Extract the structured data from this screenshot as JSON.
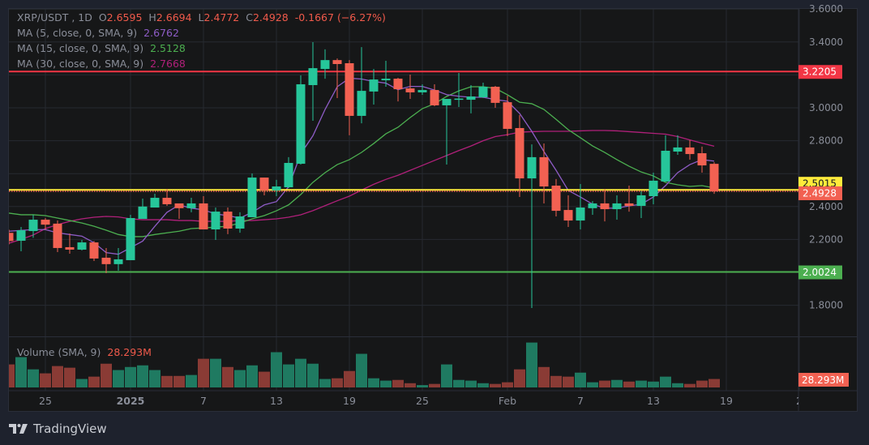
{
  "header": {
    "symbol": "XRP/USDT , 1D",
    "open_label": "O",
    "open": "2.6595",
    "high_label": "H",
    "high": "2.6694",
    "low_label": "L",
    "low": "2.4772",
    "close_label": "C",
    "close": "2.4928",
    "change": "-0.1667 (−6.27%)"
  },
  "indicators": [
    {
      "label": "MA (5, close, 0, SMA, 9)",
      "value": "2.6762",
      "color": "#8e5cc6"
    },
    {
      "label": "MA (15, close, 0, SMA, 9)",
      "value": "2.5128",
      "color": "#4caf50"
    },
    {
      "label": "MA (30, close, 0, SMA, 9)",
      "value": "2.7668",
      "color": "#b0207a"
    }
  ],
  "volume_legend": {
    "label": "Volume (SMA, 9)",
    "value": "28.293M"
  },
  "footer": {
    "brand": "TradingView"
  },
  "colors": {
    "up": "#26c69a",
    "down": "#f26152",
    "vol_up": "#1f7a61",
    "vol_down": "#8a3b35"
  },
  "chart_data": {
    "type": "candlestick",
    "title": "XRP/USDT , 1D",
    "price_range": [
      1.75,
      3.62
    ],
    "price_ticks": [
      "3.6000",
      "3.4000",
      "3.0000",
      "2.8000",
      "2.4000",
      "2.2000",
      "1.8000"
    ],
    "grid_values": [
      1.8,
      2.0,
      2.2,
      2.4,
      2.6,
      2.8,
      3.0,
      3.2,
      3.4,
      3.6
    ],
    "time_labels": [
      {
        "text": "25",
        "index": 3,
        "bold": false
      },
      {
        "text": "2025",
        "index": 10,
        "bold": true
      },
      {
        "text": "7",
        "index": 16,
        "bold": false
      },
      {
        "text": "13",
        "index": 22,
        "bold": false
      },
      {
        "text": "19",
        "index": 28,
        "bold": false
      },
      {
        "text": "25",
        "index": 34,
        "bold": false
      },
      {
        "text": "Feb",
        "index": 41,
        "bold": false
      },
      {
        "text": "7",
        "index": 47,
        "bold": false
      },
      {
        "text": "13",
        "index": 53,
        "bold": false
      },
      {
        "text": "19",
        "index": 59,
        "bold": false
      },
      {
        "text": "2",
        "index": 65,
        "bold": false
      }
    ],
    "ohlc": [
      [
        2.24,
        2.26,
        2.17,
        2.19
      ],
      [
        2.192,
        2.276,
        2.128,
        2.256
      ],
      [
        2.251,
        2.35,
        2.21,
        2.32
      ],
      [
        2.32,
        2.33,
        2.26,
        2.29
      ],
      [
        2.296,
        2.315,
        2.123,
        2.148
      ],
      [
        2.153,
        2.236,
        2.113,
        2.138
      ],
      [
        2.138,
        2.197,
        2.133,
        2.182
      ],
      [
        2.182,
        2.19,
        2.069,
        2.084
      ],
      [
        2.089,
        2.148,
        1.995,
        2.05
      ],
      [
        2.05,
        2.148,
        2.01,
        2.079
      ],
      [
        2.074,
        2.35,
        2.074,
        2.33
      ],
      [
        2.325,
        2.448,
        2.325,
        2.4
      ],
      [
        2.394,
        2.478,
        2.394,
        2.453
      ],
      [
        2.453,
        2.507,
        2.404,
        2.414
      ],
      [
        2.419,
        2.419,
        2.325,
        2.39
      ],
      [
        2.39,
        2.453,
        2.365,
        2.419
      ],
      [
        2.419,
        2.463,
        2.261,
        2.261
      ],
      [
        2.261,
        2.394,
        2.197,
        2.369
      ],
      [
        2.369,
        2.394,
        2.232,
        2.266
      ],
      [
        2.266,
        2.365,
        2.241,
        2.34
      ],
      [
        2.335,
        2.601,
        2.335,
        2.576
      ],
      [
        2.576,
        2.576,
        2.468,
        2.498
      ],
      [
        2.498,
        2.562,
        2.463,
        2.522
      ],
      [
        2.517,
        2.7,
        2.512,
        2.665
      ],
      [
        2.66,
        3.197,
        2.655,
        3.143
      ],
      [
        3.138,
        3.399,
        2.921,
        3.241
      ],
      [
        3.236,
        3.355,
        3.177,
        3.29
      ],
      [
        3.29,
        3.3,
        3.059,
        3.266
      ],
      [
        3.271,
        3.29,
        2.833,
        2.951
      ],
      [
        2.951,
        3.369,
        2.906,
        3.103
      ],
      [
        3.099,
        3.236,
        3.02,
        3.172
      ],
      [
        3.167,
        3.286,
        3.128,
        3.177
      ],
      [
        3.177,
        3.182,
        3.039,
        3.113
      ],
      [
        3.118,
        3.202,
        3.054,
        3.094
      ],
      [
        3.094,
        3.143,
        3.079,
        3.108
      ],
      [
        3.108,
        3.143,
        3.01,
        3.015
      ],
      [
        3.015,
        3.054,
        2.655,
        3.054
      ],
      [
        3.052,
        3.212,
        3.005,
        3.056
      ],
      [
        3.049,
        3.138,
        2.966,
        3.069
      ],
      [
        3.064,
        3.153,
        3.06,
        3.128
      ],
      [
        3.128,
        3.133,
        3.0,
        3.03
      ],
      [
        3.034,
        3.074,
        2.828,
        2.872
      ],
      [
        2.877,
        2.956,
        2.458,
        2.571
      ],
      [
        2.571,
        2.778,
        1.783,
        2.7
      ],
      [
        2.7,
        2.783,
        2.419,
        2.522
      ],
      [
        2.527,
        2.567,
        2.34,
        2.374
      ],
      [
        2.379,
        2.468,
        2.276,
        2.315
      ],
      [
        2.315,
        2.537,
        2.261,
        2.394
      ],
      [
        2.39,
        2.433,
        2.35,
        2.419
      ],
      [
        2.419,
        2.507,
        2.31,
        2.384
      ],
      [
        2.384,
        2.468,
        2.32,
        2.419
      ],
      [
        2.419,
        2.527,
        2.369,
        2.404
      ],
      [
        2.404,
        2.493,
        2.33,
        2.468
      ],
      [
        2.463,
        2.606,
        2.414,
        2.557
      ],
      [
        2.552,
        2.833,
        2.552,
        2.739
      ],
      [
        2.734,
        2.833,
        2.714,
        2.759
      ],
      [
        2.759,
        2.803,
        2.685,
        2.719
      ],
      [
        2.724,
        2.764,
        2.606,
        2.65
      ],
      [
        2.6595,
        2.6694,
        2.4772,
        2.4928
      ]
    ],
    "volume_millions": [
      98,
      129,
      77,
      60,
      91,
      84,
      36,
      46,
      101,
      74,
      87,
      94,
      74,
      49,
      49,
      53,
      122,
      122,
      87,
      74,
      94,
      67,
      150,
      98,
      122,
      101,
      36,
      39,
      70,
      143,
      39,
      29,
      32,
      18,
      10,
      15,
      98,
      32,
      29,
      18,
      15,
      22,
      77,
      191,
      87,
      49,
      46,
      63,
      22,
      29,
      32,
      25,
      29,
      25,
      46,
      18,
      15,
      29,
      36
    ],
    "ma5": [
      2.25,
      2.255,
      2.26,
      2.26,
      2.24,
      2.23,
      2.22,
      2.18,
      2.12,
      2.11,
      2.15,
      2.19,
      2.28,
      2.365,
      2.41,
      2.39,
      2.38,
      2.355,
      2.345,
      2.33,
      2.365,
      2.41,
      2.43,
      2.52,
      2.72,
      2.83,
      2.99,
      3.128,
      3.18,
      3.175,
      3.16,
      3.15,
      3.11,
      3.13,
      3.13,
      3.108,
      3.08,
      3.07,
      3.064,
      3.064,
      3.05,
      3.04,
      2.966,
      2.857,
      2.734,
      2.62,
      2.498,
      2.458,
      2.414,
      2.39,
      2.39,
      2.404,
      2.414,
      2.458,
      2.527,
      2.606,
      2.655,
      2.685,
      2.6762
    ],
    "ma15": [
      2.36,
      2.35,
      2.35,
      2.345,
      2.33,
      2.315,
      2.3,
      2.28,
      2.256,
      2.23,
      2.217,
      2.217,
      2.23,
      2.24,
      2.25,
      2.266,
      2.27,
      2.275,
      2.28,
      2.3,
      2.325,
      2.345,
      2.374,
      2.41,
      2.473,
      2.547,
      2.606,
      2.655,
      2.685,
      2.729,
      2.783,
      2.842,
      2.882,
      2.941,
      2.995,
      3.025,
      3.069,
      3.103,
      3.128,
      3.128,
      3.118,
      3.079,
      3.034,
      3.025,
      2.99,
      2.93,
      2.867,
      2.818,
      2.768,
      2.729,
      2.685,
      2.645,
      2.61,
      2.586,
      2.547,
      2.532,
      2.522,
      2.527,
      2.5128
    ],
    "ma30": [
      2.177,
      2.2,
      2.227,
      2.266,
      2.29,
      2.31,
      2.325,
      2.335,
      2.34,
      2.337,
      2.325,
      2.32,
      2.32,
      2.32,
      2.315,
      2.315,
      2.31,
      2.31,
      2.31,
      2.315,
      2.315,
      2.32,
      2.325,
      2.335,
      2.35,
      2.375,
      2.405,
      2.435,
      2.463,
      2.5,
      2.535,
      2.565,
      2.59,
      2.62,
      2.65,
      2.68,
      2.71,
      2.74,
      2.768,
      2.8,
      2.825,
      2.837,
      2.852,
      2.855,
      2.857,
      2.857,
      2.857,
      2.86,
      2.862,
      2.862,
      2.86,
      2.855,
      2.85,
      2.845,
      2.84,
      2.825,
      2.805,
      2.785,
      2.7668
    ],
    "horizontal_lines": [
      {
        "name": "resistance-line",
        "value": 3.2205,
        "label": "3.2205",
        "color": "#f23645",
        "text_color": "#ffffff",
        "style": "solid"
      },
      {
        "name": "yellow-level-line",
        "value": 2.5015,
        "label": "2.5015",
        "color": "#ffeb3b",
        "text_color": "#131722",
        "style": "solid"
      },
      {
        "name": "current-price-line",
        "value": 2.4928,
        "label": "2.4928",
        "color": "#f26152",
        "text_color": "#ffffff",
        "style": "dotted"
      },
      {
        "name": "support-line",
        "value": 2.0024,
        "label": "2.0024",
        "color": "#4caf50",
        "text_color": "#ffffff",
        "style": "solid"
      }
    ],
    "volume_label": "28.293M"
  }
}
